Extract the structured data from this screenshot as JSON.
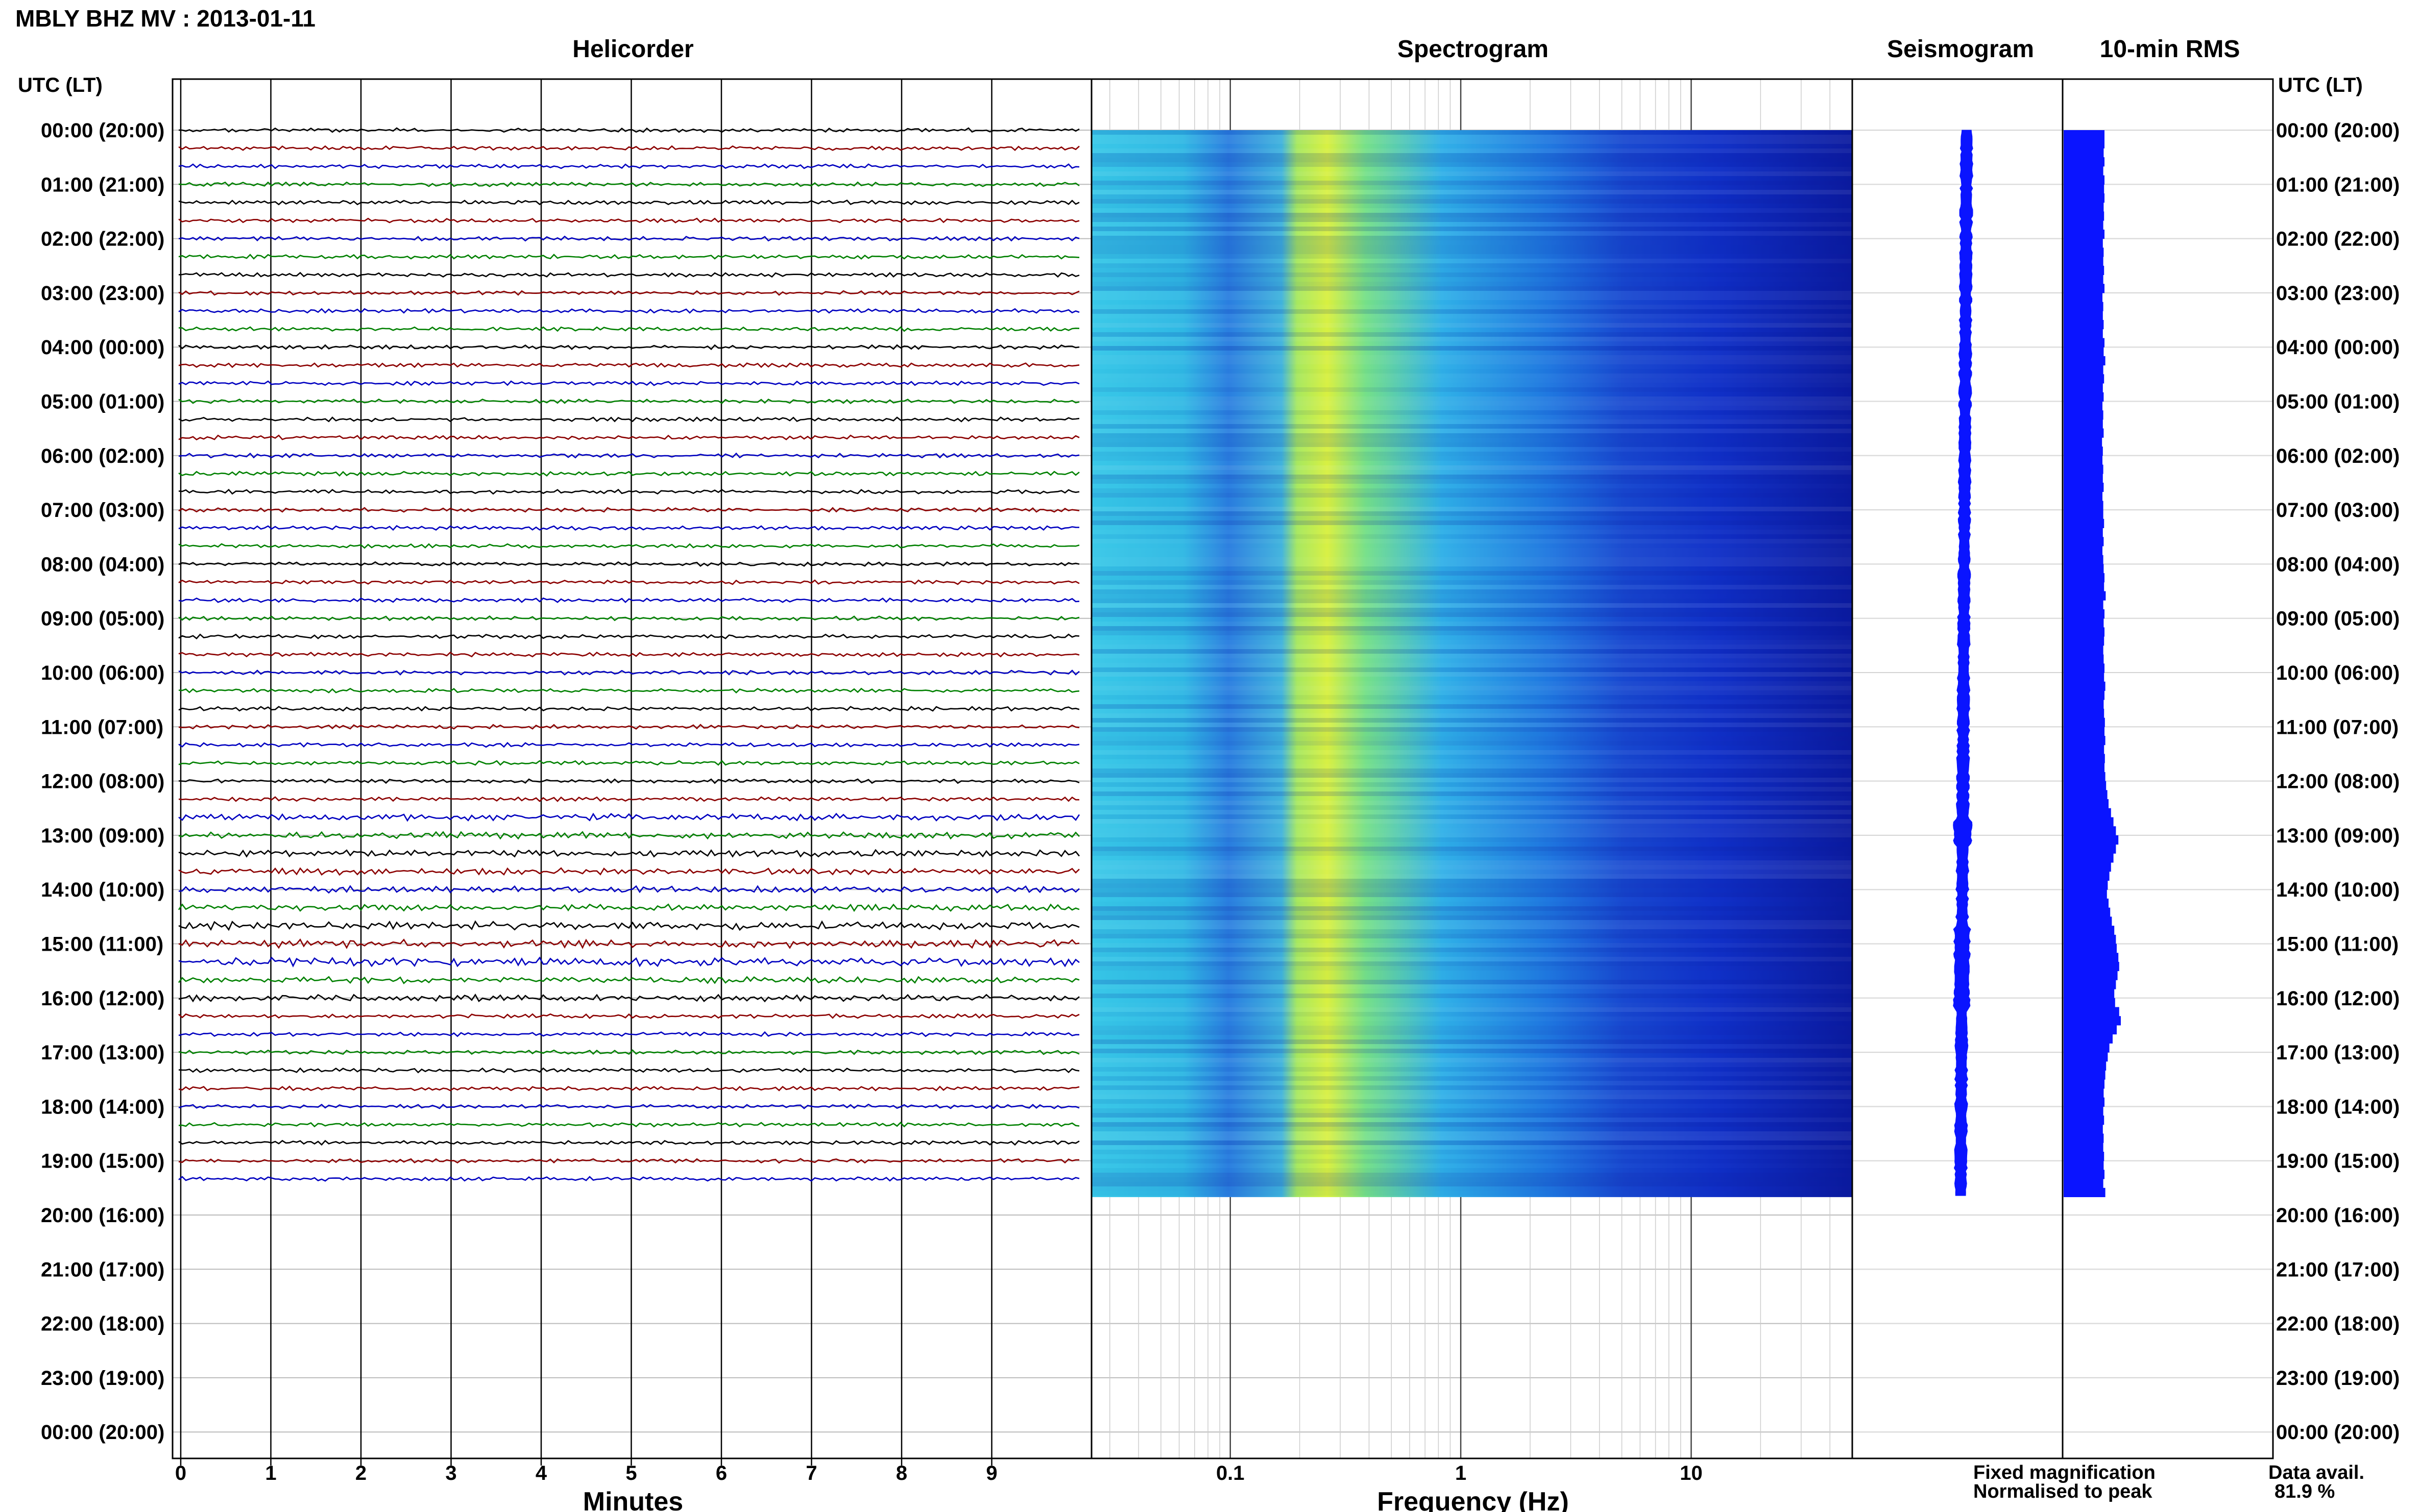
{
  "title": "MBLY BHZ MV : 2013-01-11",
  "panels": {
    "helicorder": "Helicorder",
    "spectrogram": "Spectrogram",
    "seismogram": "Seismogram",
    "rms": "10-min RMS"
  },
  "time_axis_label": "UTC (LT)",
  "helicorder_xlabel": "Minutes",
  "spectrogram_xlabel": "Frequency (Hz)",
  "legend": {
    "fixed": "Fixed magnification",
    "normalised": "Normalised to peak",
    "fixed_color": "#0000ff",
    "normalised_color": "#ff0000"
  },
  "data_avail": {
    "label": "Data avail.",
    "value": "81.9 %"
  },
  "trace_colors": [
    "#000000",
    "#8b0000",
    "#0000c0",
    "#008000"
  ],
  "chart_data": {
    "type": "seismic-helicorder",
    "hour_labels": [
      "00:00 (20:00)",
      "01:00 (21:00)",
      "02:00 (22:00)",
      "03:00 (23:00)",
      "04:00 (00:00)",
      "05:00 (01:00)",
      "06:00 (02:00)",
      "07:00 (03:00)",
      "08:00 (04:00)",
      "09:00 (05:00)",
      "10:00 (06:00)",
      "11:00 (07:00)",
      "12:00 (08:00)",
      "13:00 (09:00)",
      "14:00 (10:00)",
      "15:00 (11:00)",
      "16:00 (12:00)",
      "17:00 (13:00)",
      "18:00 (14:00)",
      "19:00 (15:00)",
      "20:00 (16:00)",
      "21:00 (17:00)",
      "22:00 (18:00)",
      "23:00 (19:00)",
      "00:00 (20:00)"
    ],
    "hours_with_data": 19.67,
    "minute_ticks": [
      "0",
      "1",
      "2",
      "3",
      "4",
      "5",
      "6",
      "7",
      "8",
      "9"
    ],
    "minute_range": [
      0,
      10
    ],
    "frequency_ticks": [
      "0.1",
      "1",
      "10"
    ],
    "frequency_range_hz": [
      0.025,
      50
    ],
    "frequency_scale": "log",
    "rms_10min": [
      1.0,
      1.0,
      0.98,
      1.0,
      0.97,
      1.0,
      0.99,
      1.0,
      0.98,
      0.99,
      0.97,
      1.0,
      0.96,
      0.98,
      0.97,
      0.99,
      0.97,
      1.0,
      0.95,
      0.97,
      0.96,
      0.98,
      0.96,
      1.0,
      0.98,
      1.02,
      0.97,
      0.99,
      0.96,
      0.98,
      0.95,
      0.97,
      0.96,
      0.98,
      0.94,
      0.96,
      0.95,
      0.97,
      0.96,
      0.98,
      0.95,
      0.97,
      0.97,
      0.99,
      0.96,
      0.98,
      0.95,
      0.97,
      0.98,
      1.0,
      0.99,
      1.03,
      0.97,
      1.0,
      0.98,
      1.0,
      0.99,
      0.97,
      0.98,
      1.0,
      0.99,
      1.02,
      1.0,
      0.98,
      0.99,
      1.01,
      1.0,
      1.02,
      0.99,
      1.01,
      1.0,
      1.02,
      1.04,
      1.07,
      1.1,
      1.16,
      1.22,
      1.28,
      1.34,
      1.28,
      1.22,
      1.16,
      1.12,
      1.08,
      1.06,
      1.1,
      1.14,
      1.18,
      1.24,
      1.28,
      1.3,
      1.34,
      1.36,
      1.32,
      1.28,
      1.24,
      1.26,
      1.36,
      1.4,
      1.3,
      1.2,
      1.12,
      1.08,
      1.04,
      1.02,
      1.0,
      0.98,
      1.0,
      0.97,
      0.99,
      0.96,
      0.98,
      0.97,
      0.99,
      0.98,
      1.0,
      0.97,
      1.02
    ]
  }
}
